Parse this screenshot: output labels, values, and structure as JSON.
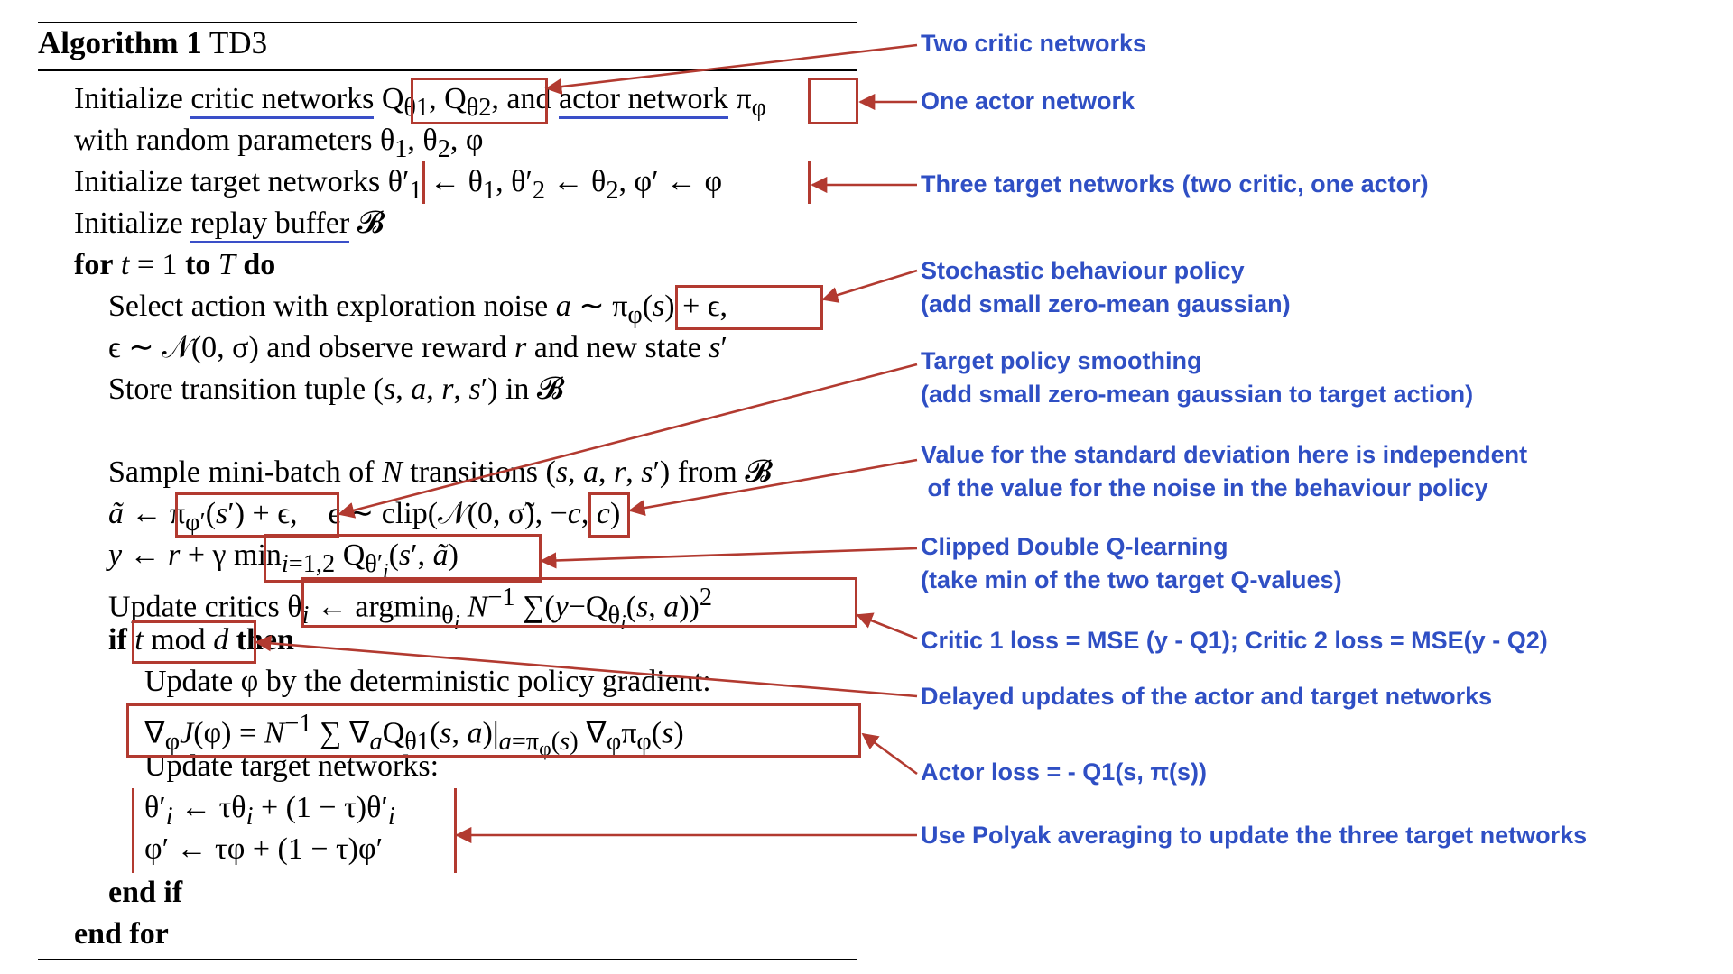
{
  "algorithm": {
    "label": "Algorithm 1",
    "name": "TD3",
    "lines": [
      {
        "id": "l1",
        "text": "Initialize <span class=\"ul\">critic networks</span> Q<sub>θ1</sub>, Q<sub>θ2</sub>, and <span class=\"ul\">actor network</span> π<sub>φ</sub>"
      },
      {
        "id": "l2",
        "text": "with random parameters θ<sub>1</sub>, θ<sub>2</sub>, φ"
      },
      {
        "id": "l3",
        "text": "Initialize target networks θ′<sub>1</sub> ← θ<sub>1</sub>, θ′<sub>2</sub> ← θ<sub>2</sub>, φ′ ← φ"
      },
      {
        "id": "l4",
        "text": "Initialize <span class=\"ul\">replay buffer</span> 𝓑"
      },
      {
        "id": "l5",
        "text": "<span class=\"kw\">for</span> <i>t</i> = 1 <span class=\"kw\">to</span> <i>T</i> <span class=\"kw\">do</span>"
      },
      {
        "id": "l6",
        "text": "Select action with exploration noise <i>a</i> ∼ π<sub>φ</sub>(<i>s</i>) + ϵ,"
      },
      {
        "id": "l7",
        "text": "ϵ ∼ 𝒩(0, σ) and observe reward <i>r</i> and new state <i>s</i>′"
      },
      {
        "id": "l8",
        "text": "Store transition tuple (<i>s</i>, <i>a</i>, <i>r</i>, <i>s</i>′) in 𝓑"
      },
      {
        "id": "l9",
        "text": "Sample mini-batch of <i>N</i> transitions (<i>s</i>, <i>a</i>, <i>r</i>, <i>s</i>′) from 𝓑"
      },
      {
        "id": "l10",
        "text": "<i>ã</i> ← π<sub>φ′</sub>(<i>s</i>′) + ϵ,&nbsp;&nbsp;&nbsp;&nbsp;ϵ ∼ clip(𝒩(0, σ̃), −<i>c</i>, <i>c</i>)"
      },
      {
        "id": "l11",
        "text": "<i>y</i> ← <i>r</i> + γ min<sub><i>i</i>=1,2</sub> Q<sub>θ′<sub><i>i</i></sub></sub>(<i>s</i>′, <i>ã</i>)"
      },
      {
        "id": "l12",
        "text": "Update critics θ<sub><i>i</i></sub> ← argmin<sub>θ<sub><i>i</i></sub></sub> <i>N</i><sup>−1</sup> ∑(<i>y</i>−Q<sub>θ<sub><i>i</i></sub></sub>(<i>s</i>, <i>a</i>))<sup>2</sup>"
      },
      {
        "id": "l13",
        "text": "<span class=\"kw\">if</span> <i>t</i> mod <i>d</i> <span class=\"kw\">then</span>"
      },
      {
        "id": "l14",
        "text": "Update φ by the deterministic policy gradient:"
      },
      {
        "id": "l15",
        "text": "∇<sub>φ</sub><i>J</i>(φ) = <i>N</i><sup>−1</sup> ∑ ∇<sub><i>a</i></sub>Q<sub>θ1</sub>(<i>s</i>, <i>a</i>)|<sub><i>a</i>=π<sub>φ</sub>(<i>s</i>)</sub> ∇<sub>φ</sub>π<sub>φ</sub>(<i>s</i>)"
      },
      {
        "id": "l16",
        "text": "Update target networks:"
      },
      {
        "id": "l17",
        "text": "θ′<sub><i>i</i></sub> ← τθ<sub><i>i</i></sub> + (1 − τ)θ′<sub><i>i</i></sub>"
      },
      {
        "id": "l18",
        "text": "φ′ ← τφ + (1 − τ)φ′"
      },
      {
        "id": "l19",
        "text": "<span class=\"kw\">end if</span>"
      },
      {
        "id": "l20",
        "text": "<span class=\"kw\">end for</span>"
      }
    ]
  },
  "annotations": [
    {
      "id": "n1",
      "lines": [
        "Two critic networks"
      ]
    },
    {
      "id": "n2",
      "lines": [
        "One actor network"
      ]
    },
    {
      "id": "n3",
      "lines": [
        "Three target networks (two critic, one actor)"
      ]
    },
    {
      "id": "n4",
      "lines": [
        "Stochastic behaviour policy",
        "(add small zero-mean gaussian)"
      ]
    },
    {
      "id": "n5",
      "lines": [
        "Target policy smoothing",
        "(add small zero-mean gaussian to target action)"
      ]
    },
    {
      "id": "n6",
      "lines": [
        "Value for the standard deviation here is independent",
        " of the value for the noise in the behaviour policy"
      ]
    },
    {
      "id": "n7",
      "lines": [
        "Clipped Double Q-learning",
        "(take min of the two target Q-values)"
      ]
    },
    {
      "id": "n8",
      "lines": [
        "Critic 1 loss = MSE (y - Q1); Critic 2 loss = MSE(y - Q2)"
      ]
    },
    {
      "id": "n9",
      "lines": [
        "Delayed updates of the actor and target networks"
      ]
    },
    {
      "id": "n10",
      "lines": [
        "Actor loss = - Q1(s, π(s))"
      ]
    },
    {
      "id": "n11",
      "lines": [
        "Use Polyak averaging to update the three target networks"
      ]
    }
  ],
  "colors": {
    "box": "#b23a30",
    "annotation": "#2f4fc4",
    "underline": "#3a4fc8"
  }
}
